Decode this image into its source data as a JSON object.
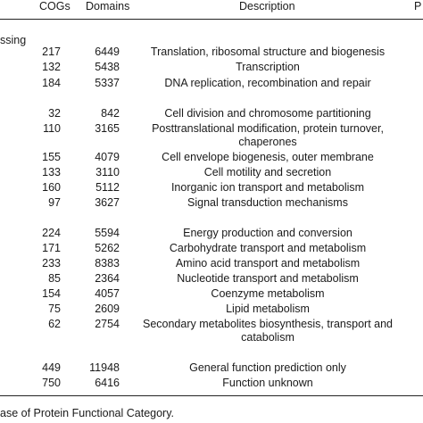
{
  "table": {
    "headers": {
      "cogs": "COGs",
      "domains": "Domains",
      "description": "Description",
      "p": "P"
    },
    "section_label": "ssing",
    "rows": [
      {
        "cogs": "217",
        "domains": "6449",
        "description": "Translation, ribosomal structure and biogenesis",
        "desc_cont": ""
      },
      {
        "cogs": "132",
        "domains": "5438",
        "description": "Transcription",
        "desc_cont": ""
      },
      {
        "cogs": "184",
        "domains": "5337",
        "description": "DNA replication, recombination and repair",
        "desc_cont": ""
      },
      {
        "cogs": "32",
        "domains": "842",
        "description": "Cell division and chromosome partitioning",
        "desc_cont": ""
      },
      {
        "cogs": "110",
        "domains": "3165",
        "description": "Posttranslational modification, protein turnover,",
        "desc_cont": "chaperones"
      },
      {
        "cogs": "155",
        "domains": "4079",
        "description": "Cell envelope biogenesis, outer membrane",
        "desc_cont": ""
      },
      {
        "cogs": "133",
        "domains": "3110",
        "description": "Cell motility and secretion",
        "desc_cont": ""
      },
      {
        "cogs": "160",
        "domains": "5112",
        "description": "Inorganic ion transport and metabolism",
        "desc_cont": ""
      },
      {
        "cogs": "97",
        "domains": "3627",
        "description": "Signal transduction mechanisms",
        "desc_cont": ""
      },
      {
        "cogs": "224",
        "domains": "5594",
        "description": "Energy production and conversion",
        "desc_cont": ""
      },
      {
        "cogs": "171",
        "domains": "5262",
        "description": "Carbohydrate transport and metabolism",
        "desc_cont": ""
      },
      {
        "cogs": "233",
        "domains": "8383",
        "description": "Amino acid transport and metabolism",
        "desc_cont": ""
      },
      {
        "cogs": "85",
        "domains": "2364",
        "description": "Nucleotide transport and metabolism",
        "desc_cont": ""
      },
      {
        "cogs": "154",
        "domains": "4057",
        "description": "Coenzyme metabolism",
        "desc_cont": ""
      },
      {
        "cogs": "75",
        "domains": "2609",
        "description": "Lipid metabolism",
        "desc_cont": ""
      },
      {
        "cogs": "62",
        "domains": "2754",
        "description": "Secondary metabolites biosynthesis, transport and",
        "desc_cont": "catabolism"
      },
      {
        "cogs": "449",
        "domains": "11948",
        "description": "General function prediction only",
        "desc_cont": ""
      },
      {
        "cogs": "750",
        "domains": "6416",
        "description": "Function unknown",
        "desc_cont": ""
      }
    ]
  },
  "caption": "ase of Protein Functional Category."
}
